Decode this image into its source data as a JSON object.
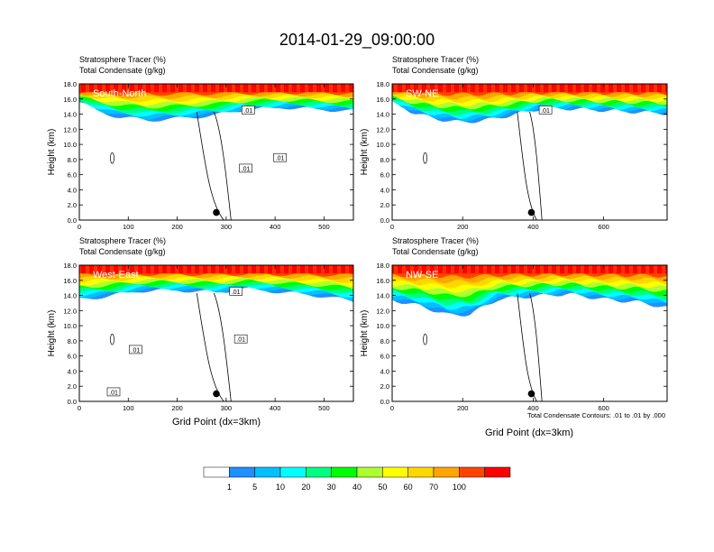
{
  "title": "2014-01-29_09:00:00",
  "panel_header": {
    "line1": "Stratosphere Tracer   (%)",
    "line2": "Total Condensate   (g/kg)"
  },
  "y_axis_label": "Height (km)",
  "x_axis_label": "Grid Point (dx=3km)",
  "contour_note": "Total Condensate Contours: .01 to .01 by .000",
  "contour_label": ".01",
  "colorbar": {
    "colors": [
      "#ffffff",
      "#1e90ff",
      "#00bfff",
      "#00ffff",
      "#00ff7f",
      "#00ff00",
      "#adff2f",
      "#ffff00",
      "#ffd700",
      "#ffa500",
      "#ff4500",
      "#ff0000"
    ],
    "labels": [
      "1",
      "5",
      "10",
      "20",
      "30",
      "40",
      "50",
      "60",
      "70",
      "100"
    ]
  },
  "chart_data": [
    {
      "type": "heatmap",
      "name": "South-North",
      "xlim": [
        0,
        560
      ],
      "ylim": [
        0,
        18
      ],
      "xticks": [
        "0",
        "100",
        "200",
        "300",
        "400",
        "500"
      ],
      "yticks": [
        "0.0",
        "2.0",
        "4.0",
        "6.0",
        "8.0",
        "10.0",
        "12.0",
        "14.0",
        "16.0",
        "18.0"
      ],
      "marker_x": 280,
      "tracer_bottom_km": [
        [
          0,
          15.6
        ],
        [
          40,
          14.4
        ],
        [
          80,
          13.6
        ],
        [
          140,
          13.2
        ],
        [
          200,
          13.4
        ],
        [
          280,
          13.9
        ],
        [
          340,
          14.6
        ],
        [
          420,
          14.9
        ],
        [
          500,
          14.6
        ],
        [
          560,
          14.4
        ]
      ],
      "contour_labels_x": [
        345,
        340,
        410
      ]
    },
    {
      "type": "heatmap",
      "name": "SW-NE",
      "xlim": [
        0,
        780
      ],
      "ylim": [
        0,
        18
      ],
      "xticks": [
        "0",
        "200",
        "400",
        "600"
      ],
      "yticks": [
        "0.0",
        "2.0",
        "4.0",
        "6.0",
        "8.0",
        "10.0",
        "12.0",
        "14.0",
        "16.0",
        "18.0"
      ],
      "marker_x": 395,
      "tracer_bottom_km": [
        [
          0,
          15.6
        ],
        [
          60,
          14.2
        ],
        [
          120,
          13.4
        ],
        [
          200,
          12.9
        ],
        [
          280,
          13.3
        ],
        [
          360,
          14.1
        ],
        [
          430,
          14.8
        ],
        [
          520,
          14.7
        ],
        [
          640,
          14.4
        ],
        [
          780,
          14.1
        ]
      ],
      "contour_labels_x": [
        435
      ]
    },
    {
      "type": "heatmap",
      "name": "West-East",
      "xlim": [
        0,
        560
      ],
      "ylim": [
        0,
        18
      ],
      "xticks": [
        "0",
        "100",
        "200",
        "300",
        "400",
        "500"
      ],
      "yticks": [
        "0.0",
        "2.0",
        "4.0",
        "6.0",
        "8.0",
        "10.0",
        "12.0",
        "14.0",
        "16.0",
        "18.0"
      ],
      "marker_x": 280,
      "tracer_bottom_km": [
        [
          0,
          13.5
        ],
        [
          60,
          13.9
        ],
        [
          120,
          14.6
        ],
        [
          200,
          14.7
        ],
        [
          280,
          14.4
        ],
        [
          340,
          14.9
        ],
        [
          420,
          14.4
        ],
        [
          500,
          13.9
        ],
        [
          560,
          13.2
        ]
      ],
      "contour_labels_x": [
        320,
        115,
        330,
        70
      ]
    },
    {
      "type": "heatmap",
      "name": "NW-SE",
      "xlim": [
        0,
        780
      ],
      "ylim": [
        0,
        18
      ],
      "xticks": [
        "0",
        "200",
        "400",
        "600"
      ],
      "yticks": [
        "0.0",
        "2.0",
        "4.0",
        "6.0",
        "8.0",
        "10.0",
        "12.0",
        "14.0",
        "16.0",
        "18.0"
      ],
      "marker_x": 395,
      "tracer_bottom_km": [
        [
          0,
          13.4
        ],
        [
          80,
          12.6
        ],
        [
          160,
          11.4
        ],
        [
          220,
          11.5
        ],
        [
          300,
          13.5
        ],
        [
          400,
          13.9
        ],
        [
          500,
          14.2
        ],
        [
          600,
          13.5
        ],
        [
          700,
          13.1
        ],
        [
          780,
          12.4
        ]
      ],
      "contour_labels_x": []
    }
  ]
}
